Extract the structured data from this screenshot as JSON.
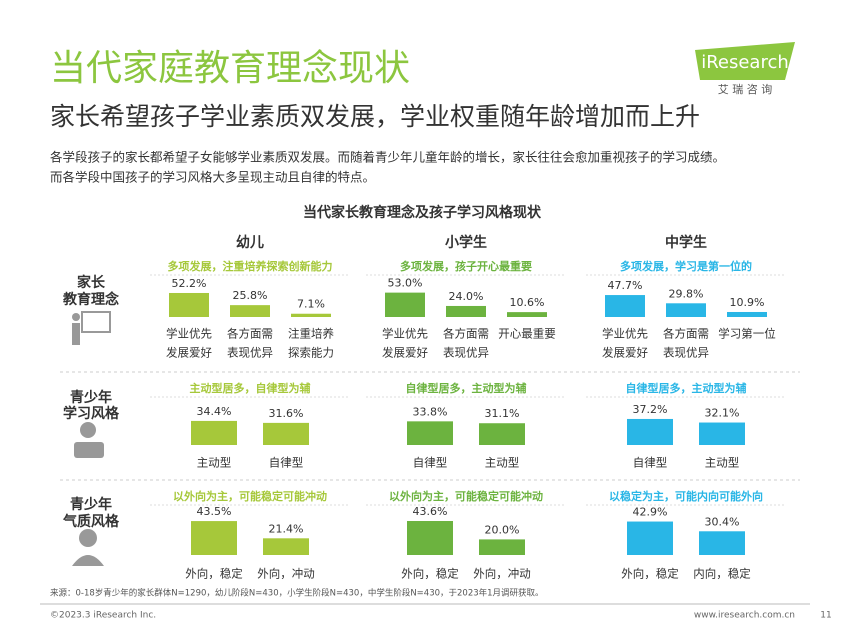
{
  "header": {
    "title": "当代家庭教育理念现状",
    "subtitle": "家长希望孩子学业素质双发展，学业权重随年龄增加而上升",
    "paragraph": [
      "各学段孩子的家长都希望子女能够学业素质双发展。而随着青少年儿童年龄的增长，家长往往会愈加重视孩子的学习成绩。",
      "而各学段中国孩子的学习风格大多呈现主动且自律的特点。"
    ],
    "logo": {
      "name": "iResearch",
      "cn": "艾 瑞 咨 询"
    }
  },
  "chart_title": "当代家长教育理念及孩子学习风格现状",
  "columns": [
    "幼儿",
    "小学生",
    "中学生"
  ],
  "rows": [
    [
      "家长",
      "教育理念"
    ],
    [
      "青少年",
      "学习风格"
    ],
    [
      "青少年",
      "气质风格"
    ]
  ],
  "chart_data": [
    {
      "type": "bar",
      "subtitle": "多项发展，注重培养探索创新能力",
      "categories": [
        [
          "学业优先",
          "发展爱好"
        ],
        [
          "各方面需",
          "表现优异"
        ],
        [
          "注重培养",
          "探索能力"
        ]
      ],
      "values": [
        52.2,
        25.8,
        7.1
      ],
      "value_labels": [
        "52.2%",
        "25.8%",
        "7.1%"
      ],
      "color": "#a6c83a"
    },
    {
      "type": "bar",
      "subtitle": "多项发展，孩子开心最重要",
      "categories": [
        [
          "学业优先",
          "发展爱好"
        ],
        [
          "各方面需",
          "表现优异"
        ],
        [
          "开心最重要"
        ]
      ],
      "values": [
        53,
        24,
        10.6
      ],
      "value_labels": [
        "53.0%",
        "24.0%",
        "10.6%"
      ],
      "color": "#6cb33f"
    },
    {
      "type": "bar",
      "subtitle": "多项发展，学习是第一位的",
      "categories": [
        [
          "学业优先",
          "发展爱好"
        ],
        [
          "各方面需",
          "表现优异"
        ],
        [
          "学习第一位"
        ]
      ],
      "values": [
        47.7,
        29.8,
        10.9
      ],
      "value_labels": [
        "47.7%",
        "29.8%",
        "10.9%"
      ],
      "color": "#29b6e6"
    },
    {
      "type": "bar",
      "subtitle": "主动型居多，自律型为辅",
      "categories": [
        [
          "主动型"
        ],
        [
          "自律型"
        ]
      ],
      "values": [
        34.4,
        31.6
      ],
      "value_labels": [
        "34.4%",
        "31.6%"
      ],
      "color": "#a6c83a"
    },
    {
      "type": "bar",
      "subtitle": "自律型居多，主动型为辅",
      "categories": [
        [
          "自律型"
        ],
        [
          "主动型"
        ]
      ],
      "values": [
        33.8,
        31.1
      ],
      "value_labels": [
        "33.8%",
        "31.1%"
      ],
      "color": "#6cb33f"
    },
    {
      "type": "bar",
      "subtitle": "自律型居多，主动型为辅",
      "categories": [
        [
          "自律型"
        ],
        [
          "主动型"
        ]
      ],
      "values": [
        37.2,
        32.1
      ],
      "value_labels": [
        "37.2%",
        "32.1%"
      ],
      "color": "#29b6e6"
    },
    {
      "type": "bar",
      "subtitle": "以外向为主，可能稳定可能冲动",
      "categories": [
        [
          "外向，稳定"
        ],
        [
          "外向，冲动"
        ]
      ],
      "values": [
        43.5,
        21.4
      ],
      "value_labels": [
        "43.5%",
        "21.4%"
      ],
      "color": "#a6c83a"
    },
    {
      "type": "bar",
      "subtitle": "以外向为主，可能稳定可能冲动",
      "categories": [
        [
          "外向，稳定"
        ],
        [
          "外向，冲动"
        ]
      ],
      "values": [
        43.6,
        20
      ],
      "value_labels": [
        "43.6%",
        "20.0%"
      ],
      "color": "#6cb33f"
    },
    {
      "type": "bar",
      "subtitle": "以稳定为主，可能内向可能外向",
      "categories": [
        [
          "外向，稳定"
        ],
        [
          "内向，稳定"
        ]
      ],
      "values": [
        42.9,
        30.4
      ],
      "value_labels": [
        "42.9%",
        "30.4%"
      ],
      "color": "#29b6e6"
    }
  ],
  "footnote": "来源：0-18岁青少年的家长群体N=1290，幼儿阶段N=430，小学生阶段N=430，中学生阶段N=430，于2023年1月调研获取。",
  "footer": {
    "copyright": "©2023.3 iResearch Inc.",
    "url": "www.iresearch.com.cn",
    "page": "11"
  }
}
